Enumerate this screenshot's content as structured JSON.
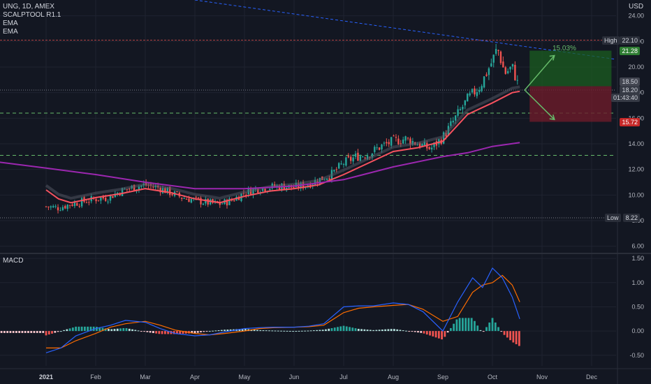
{
  "header": {
    "symbol": "UNG, 1D, AMEX",
    "indicator_1": "SCALPTOOL R1.1",
    "indicator_2": "EMA",
    "indicator_3": "EMA",
    "macd_label": "MACD",
    "currency": "USD"
  },
  "price_tags": {
    "high_label": "High",
    "high_value": "22.10",
    "target_value": "21.28",
    "entry_value": "18.50",
    "current_value": "18.20",
    "countdown": "01:43:40",
    "stop_value": "15.72",
    "low_label": "Low",
    "low_value": "8.22",
    "pct_label": "15.03%"
  },
  "colors": {
    "background": "#131722",
    "candle_up": "#26a69a",
    "candle_down": "#ef5350",
    "ema_fast": "#f7525f",
    "ema_slow": "#9c27b0",
    "macd_line": "#2962ff",
    "signal_line": "#ff6d00",
    "target_zone": "#1b5e20",
    "stop_zone": "#6d1b2a"
  },
  "chart_data": {
    "type": "line",
    "price_axis": {
      "ticks": [
        "24.00",
        "22.00",
        "20.00",
        "18.00",
        "16.00",
        "14.00",
        "12.00",
        "10.00",
        "8.00",
        "6.00"
      ],
      "range": [
        5.6,
        24.8
      ]
    },
    "macd_axis": {
      "ticks": [
        "1.50",
        "1.00",
        "0.50",
        "0.00",
        "-0.50"
      ],
      "range": [
        -0.72,
        1.56
      ]
    },
    "x_ticks": [
      "2021",
      "Feb",
      "Mar",
      "Apr",
      "May",
      "Jun",
      "Jul",
      "Aug",
      "Sep",
      "Oct",
      "Nov",
      "Dec"
    ],
    "price_close": [
      [
        0,
        9.1
      ],
      [
        0.25,
        9.0
      ],
      [
        0.5,
        9.3
      ],
      [
        0.75,
        9.5
      ],
      [
        1,
        9.7
      ],
      [
        1.25,
        9.8
      ],
      [
        1.5,
        10.3
      ],
      [
        1.75,
        10.6
      ],
      [
        2,
        10.8
      ],
      [
        2.25,
        10.6
      ],
      [
        2.5,
        10.2
      ],
      [
        2.75,
        9.8
      ],
      [
        3,
        9.6
      ],
      [
        3.25,
        9.4
      ],
      [
        3.5,
        9.3
      ],
      [
        3.75,
        9.6
      ],
      [
        4,
        10.2
      ],
      [
        4.25,
        10.5
      ],
      [
        4.5,
        10.6
      ],
      [
        4.75,
        10.7
      ],
      [
        5,
        10.6
      ],
      [
        5.25,
        10.8
      ],
      [
        5.5,
        11.2
      ],
      [
        5.75,
        11.6
      ],
      [
        6,
        12.5
      ],
      [
        6.25,
        13.0
      ],
      [
        6.5,
        13.2
      ],
      [
        6.75,
        13.8
      ],
      [
        7,
        14.2
      ],
      [
        7.25,
        14.4
      ],
      [
        7.5,
        14.0
      ],
      [
        7.75,
        13.6
      ],
      [
        8,
        14.5
      ],
      [
        8.25,
        16.0
      ],
      [
        8.5,
        17.5
      ],
      [
        8.75,
        18.5
      ],
      [
        9,
        20.5
      ],
      [
        9.1,
        21.5
      ],
      [
        9.25,
        19.5
      ],
      [
        9.4,
        20.0
      ],
      [
        9.55,
        18.2
      ]
    ],
    "ema_fast": [
      [
        0,
        10.4
      ],
      [
        0.25,
        9.7
      ],
      [
        0.5,
        9.4
      ],
      [
        0.75,
        9.6
      ],
      [
        1,
        9.8
      ],
      [
        1.5,
        10.1
      ],
      [
        2,
        10.5
      ],
      [
        2.5,
        10.2
      ],
      [
        3,
        9.7
      ],
      [
        3.5,
        9.4
      ],
      [
        4,
        9.9
      ],
      [
        4.5,
        10.3
      ],
      [
        5,
        10.5
      ],
      [
        5.5,
        10.8
      ],
      [
        6,
        11.6
      ],
      [
        6.5,
        12.5
      ],
      [
        7,
        13.4
      ],
      [
        7.5,
        13.7
      ],
      [
        8,
        14.2
      ],
      [
        8.5,
        16.3
      ],
      [
        9,
        17.2
      ],
      [
        9.4,
        18.0
      ],
      [
        9.55,
        18.1
      ]
    ],
    "ema_slow": [
      [
        -1,
        12.6
      ],
      [
        0,
        12.1
      ],
      [
        1,
        11.6
      ],
      [
        2,
        11.0
      ],
      [
        3,
        10.5
      ],
      [
        4,
        10.5
      ],
      [
        5,
        10.7
      ],
      [
        6,
        11.2
      ],
      [
        7,
        12.2
      ],
      [
        8,
        13.0
      ],
      [
        8.5,
        13.3
      ],
      [
        9,
        13.8
      ],
      [
        9.55,
        14.1
      ]
    ],
    "macd_line": [
      [
        0,
        -0.45
      ],
      [
        0.3,
        -0.35
      ],
      [
        0.6,
        -0.1
      ],
      [
        1,
        0.05
      ],
      [
        1.3,
        0.12
      ],
      [
        1.6,
        0.22
      ],
      [
        2,
        0.18
      ],
      [
        2.3,
        0.05
      ],
      [
        2.6,
        -0.05
      ],
      [
        3,
        -0.1
      ],
      [
        3.3,
        -0.08
      ],
      [
        3.6,
        -0.02
      ],
      [
        4,
        0.05
      ],
      [
        4.3,
        0.07
      ],
      [
        4.6,
        0.08
      ],
      [
        5,
        0.08
      ],
      [
        5.3,
        0.1
      ],
      [
        5.6,
        0.15
      ],
      [
        6,
        0.5
      ],
      [
        6.3,
        0.52
      ],
      [
        6.6,
        0.52
      ],
      [
        7,
        0.58
      ],
      [
        7.3,
        0.55
      ],
      [
        7.6,
        0.4
      ],
      [
        8,
        0.0
      ],
      [
        8.3,
        0.6
      ],
      [
        8.6,
        1.1
      ],
      [
        8.8,
        0.9
      ],
      [
        9,
        1.3
      ],
      [
        9.2,
        1.1
      ],
      [
        9.4,
        0.7
      ],
      [
        9.55,
        0.25
      ]
    ],
    "signal_line": [
      [
        0,
        -0.35
      ],
      [
        0.3,
        -0.35
      ],
      [
        0.6,
        -0.2
      ],
      [
        1,
        -0.05
      ],
      [
        1.3,
        0.08
      ],
      [
        1.6,
        0.15
      ],
      [
        2,
        0.2
      ],
      [
        2.3,
        0.12
      ],
      [
        2.6,
        0.02
      ],
      [
        3,
        -0.05
      ],
      [
        3.3,
        -0.08
      ],
      [
        3.6,
        -0.05
      ],
      [
        4,
        0.0
      ],
      [
        4.3,
        0.05
      ],
      [
        4.6,
        0.07
      ],
      [
        5,
        0.08
      ],
      [
        5.3,
        0.09
      ],
      [
        5.6,
        0.12
      ],
      [
        6,
        0.38
      ],
      [
        6.3,
        0.47
      ],
      [
        6.6,
        0.5
      ],
      [
        7,
        0.53
      ],
      [
        7.3,
        0.55
      ],
      [
        7.6,
        0.45
      ],
      [
        8,
        0.2
      ],
      [
        8.3,
        0.3
      ],
      [
        8.6,
        0.8
      ],
      [
        8.8,
        0.95
      ],
      [
        9,
        1.0
      ],
      [
        9.2,
        1.15
      ],
      [
        9.4,
        0.95
      ],
      [
        9.55,
        0.6
      ]
    ],
    "markers": {
      "high": 22.1,
      "target": 21.28,
      "entry": 18.5,
      "current": 18.2,
      "stop": 15.72,
      "low": 8.22,
      "support_1": 16.4,
      "support_2": 13.1
    }
  }
}
